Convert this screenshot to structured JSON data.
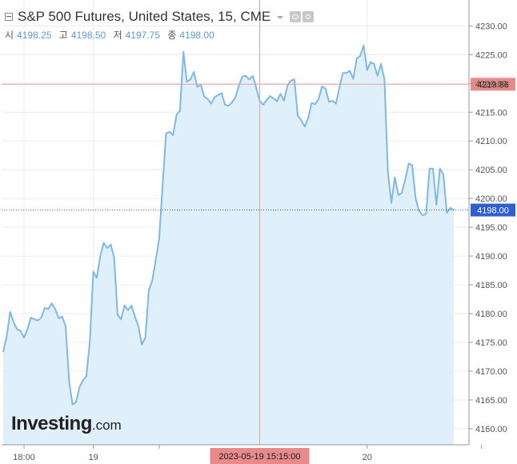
{
  "header": {
    "title": "S&P 500 Futures, United States, 15, CME",
    "ohlc": [
      {
        "label": "시",
        "value": "4198.25"
      },
      {
        "label": "고",
        "value": "4198.50"
      },
      {
        "label": "저",
        "value": "4197.75"
      },
      {
        "label": "종",
        "value": "4198.00"
      }
    ]
  },
  "crosshair": {
    "price_label": "4219.86",
    "time_label": "2023-05-19 15:15:00"
  },
  "last_price_label": "4198.00",
  "watermark": {
    "main": "Investing",
    "domain": ".com"
  },
  "colors": {
    "line": "#7fb8e6",
    "area_fill": "#e0f0fa",
    "crosshair": "#e8a0a0",
    "crosshair_label_bg": "#e88a8a",
    "last_price": "#2f5fd0",
    "grid": "#ececec",
    "axis_text": "#555555"
  },
  "chart_data": {
    "type": "area",
    "title": "S&P 500 Futures, United States, 15, CME",
    "interval": "15",
    "y_ticks": [
      4160,
      4165,
      4170,
      4175,
      4180,
      4185,
      4190,
      4195,
      4200,
      4205,
      4210,
      4215,
      4220,
      4225,
      4230
    ],
    "y_tick_labels": [
      "4160.00",
      "4165.00",
      "4170.00",
      "4175.00",
      "4180.00",
      "4185.00",
      "4190.00",
      "4195.00",
      "4200.00",
      "4205.00",
      "4210.00",
      "4215.00",
      "4220.00",
      "4225.00",
      "4230.00"
    ],
    "ylim": [
      4157.2,
      4234.5
    ],
    "x_ticks": [
      {
        "label": "18:00",
        "index": 6
      },
      {
        "label": "19",
        "index": 26
      },
      {
        "label": "20",
        "index": 105
      }
    ],
    "x_tick_marks_only": [
      45,
      138
    ],
    "crosshair": {
      "index": 74,
      "price": 4219.86,
      "time": "2023-05-19 15:15:00"
    },
    "last_price": 4198.0,
    "series": [
      {
        "values": [
          4173.3,
          4176.0,
          4180.3,
          4178.5,
          4177.3,
          4177.0,
          4175.8,
          4177.3,
          4179.3,
          4179.0,
          4178.8,
          4179.3,
          4181.0,
          4180.8,
          4181.8,
          4180.8,
          4179.2,
          4179.5,
          4177.8,
          4168.3,
          4164.2,
          4164.6,
          4167.2,
          4168.4,
          4169.1,
          4175.3,
          4187.3,
          4186.2,
          4190.0,
          4192.3,
          4191.4,
          4192.0,
          4189.8,
          4179.8,
          4179.0,
          4181.4,
          4180.6,
          4181.4,
          4179.5,
          4177.8,
          4174.6,
          4175.8,
          4184.0,
          4185.7,
          4189.3,
          4193.0,
          4202.3,
          4211.3,
          4211.6,
          4211.0,
          4214.5,
          4215.3,
          4225.5,
          4220.3,
          4220.7,
          4222.0,
          4219.4,
          4219.8,
          4217.7,
          4217.3,
          4216.5,
          4217.6,
          4218.0,
          4218.3,
          4216.3,
          4216.1,
          4216.7,
          4217.6,
          4219.6,
          4221.2,
          4221.3,
          4220.7,
          4221.3,
          4219.3,
          4217.0,
          4216.3,
          4217.1,
          4217.8,
          4217.4,
          4216.9,
          4218.2,
          4217.0,
          4219.6,
          4220.5,
          4220.7,
          4214.4,
          4213.6,
          4212.5,
          4214.0,
          4216.6,
          4216.4,
          4217.3,
          4219.5,
          4219.1,
          4216.8,
          4217.0,
          4216.5,
          4219.3,
          4221.8,
          4221.8,
          4222.2,
          4220.8,
          4224.3,
          4224.8,
          4226.6,
          4222.3,
          4223.7,
          4223.4,
          4221.3,
          4223.4,
          4220.7,
          4204.6,
          4199.2,
          4203.7,
          4200.6,
          4201.0,
          4203.3,
          4206.1,
          4205.8,
          4200.0,
          4197.8,
          4197.1,
          4197.3,
          4205.2,
          4205.2,
          4198.9,
          4205.2,
          4204.2,
          4197.5,
          4198.4,
          4198.0
        ]
      }
    ]
  }
}
